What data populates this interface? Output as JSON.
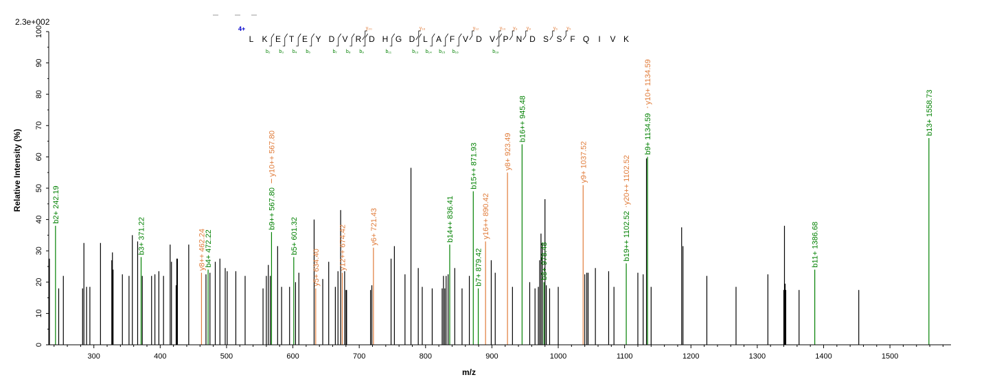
{
  "colors": {
    "b_ion": "#008000",
    "y_ion": "#e07b39",
    "unmatched": "#000000",
    "charge": "#0000cc",
    "residue": "#000000",
    "dash": "#999999"
  },
  "chart_data": {
    "type": "bar",
    "scale_label": "2.3e+002",
    "xlabel": "m/z",
    "ylabel": "Relative   Intensity (%)",
    "xlim": [
      232,
      1592
    ],
    "ylim": [
      0,
      100
    ],
    "x_ticks": [
      300,
      400,
      500,
      600,
      700,
      800,
      900,
      1000,
      1100,
      1200,
      1300,
      1400,
      1500
    ],
    "y_ticks": [
      0,
      10,
      20,
      30,
      40,
      50,
      60,
      70,
      80,
      90,
      100
    ],
    "grid": false,
    "peptide": {
      "charge": "4+",
      "residues": [
        "L",
        "K",
        "E",
        "T",
        "E",
        "Y",
        "D",
        "V",
        "R",
        "D",
        "H",
        "G",
        "D",
        "L",
        "A",
        "F",
        "V",
        "D",
        "V",
        "P",
        "N",
        "D",
        "S",
        "S",
        "F",
        "Q",
        "I",
        "V",
        "K"
      ],
      "y_markers": [
        {
          "label": "y₂₀",
          "after": 9
        },
        {
          "label": "y₁₆",
          "after": 13
        },
        {
          "label": "y₁₂",
          "after": 17
        },
        {
          "label": "y₁₀",
          "after": 19
        },
        {
          "label": "y₉",
          "after": 20
        },
        {
          "label": "y₈",
          "after": 21
        },
        {
          "label": "y₆",
          "after": 23
        },
        {
          "label": "y₅",
          "after": 24
        }
      ],
      "b_markers": [
        {
          "label": "b₂",
          "after": 2
        },
        {
          "label": "b₃",
          "after": 3
        },
        {
          "label": "b₄",
          "after": 4
        },
        {
          "label": "b₅",
          "after": 5
        },
        {
          "label": "b₇",
          "after": 7
        },
        {
          "label": "b₈",
          "after": 8
        },
        {
          "label": "b₉",
          "after": 9
        },
        {
          "label": "b₁₁",
          "after": 11
        },
        {
          "label": "b₁₃",
          "after": 13
        },
        {
          "label": "b₁₄",
          "after": 14
        },
        {
          "label": "b₁₅",
          "after": 15
        },
        {
          "label": "b₁₆",
          "after": 16
        },
        {
          "label": "b₁₉",
          "after": 19
        }
      ]
    },
    "annotated_peaks": [
      {
        "mz": 242.19,
        "intensity": 38,
        "ion": "b",
        "label": "b2+ 242.19"
      },
      {
        "mz": 371.22,
        "intensity": 28,
        "ion": "b",
        "label": "b3+ 371.22"
      },
      {
        "mz": 462.24,
        "intensity": 23,
        "ion": "y",
        "label": "y8++ 462.24"
      },
      {
        "mz": 472.22,
        "intensity": 24,
        "ion": "b",
        "label": "b4+ 472.22"
      },
      {
        "mz": 567.8,
        "intensity": 36,
        "ion": "b",
        "label": "b9++ 567.80"
      },
      {
        "mz": 567.8,
        "intensity": 53,
        "ion": "y",
        "label": "y10++ 567.80",
        "stacked": true
      },
      {
        "mz": 601.32,
        "intensity": 28,
        "ion": "b",
        "label": "b5+ 601.32"
      },
      {
        "mz": 634.4,
        "intensity": 18,
        "ion": "y",
        "label": "y5+ 634.40"
      },
      {
        "mz": 674.42,
        "intensity": 23,
        "ion": "y",
        "label": "y12++ 674.42"
      },
      {
        "mz": 721.43,
        "intensity": 31,
        "ion": "y",
        "label": "y6+ 721.43"
      },
      {
        "mz": 836.41,
        "intensity": 32,
        "ion": "b",
        "label": "b14++ 836.41"
      },
      {
        "mz": 871.93,
        "intensity": 49,
        "ion": "b",
        "label": "b15++ 871.93"
      },
      {
        "mz": 879.42,
        "intensity": 18,
        "ion": "b",
        "label": "b7+ 879.42"
      },
      {
        "mz": 890.42,
        "intensity": 33,
        "ion": "y",
        "label": "y16++ 890.42"
      },
      {
        "mz": 923.49,
        "intensity": 55,
        "ion": "y",
        "label": "y8+ 923.49"
      },
      {
        "mz": 945.48,
        "intensity": 64,
        "ion": "b",
        "label": "b16++ 945.48"
      },
      {
        "mz": 978.48,
        "intensity": 20,
        "ion": "b",
        "label": "b8+ 978.48"
      },
      {
        "mz": 1037.52,
        "intensity": 51,
        "ion": "y",
        "label": "y9+ 1037.52"
      },
      {
        "mz": 1102.52,
        "intensity": 26,
        "ion": "b",
        "label": "b19++ 1102.52"
      },
      {
        "mz": 1102.52,
        "intensity": 44,
        "ion": "y",
        "label": "y20++ 1102.52",
        "stacked": true
      },
      {
        "mz": 1134.59,
        "intensity": 60,
        "ion": "b",
        "label": "b9+ 1134.59"
      },
      {
        "mz": 1134.59,
        "intensity": 76,
        "ion": "y",
        "label": "y10+ 1134.59",
        "stacked": true
      },
      {
        "mz": 1386.68,
        "intensity": 24,
        "ion": "b",
        "label": "b11+ 1386.68"
      },
      {
        "mz": 1558.73,
        "intensity": 66,
        "ion": "b",
        "label": "b13+ 1558.73"
      }
    ],
    "unannotated_peaks": [
      [
        233,
        27.5
      ],
      [
        247,
        18
      ],
      [
        254,
        22
      ],
      [
        283,
        18
      ],
      [
        285,
        32.5
      ],
      [
        289,
        18.5
      ],
      [
        294,
        18.5
      ],
      [
        310,
        32.5
      ],
      [
        327,
        27
      ],
      [
        328,
        29.5
      ],
      [
        329,
        24
      ],
      [
        343,
        22.5
      ],
      [
        353,
        22
      ],
      [
        358,
        35
      ],
      [
        366,
        33
      ],
      [
        373,
        22
      ],
      [
        387,
        22
      ],
      [
        392,
        22.5
      ],
      [
        398,
        23.5
      ],
      [
        405,
        22
      ],
      [
        415,
        32
      ],
      [
        417,
        26.5
      ],
      [
        424,
        19
      ],
      [
        425,
        27.5
      ],
      [
        426,
        27.5
      ],
      [
        443,
        32
      ],
      [
        469,
        22.5
      ],
      [
        475,
        23
      ],
      [
        483,
        26.5
      ],
      [
        490,
        27.5
      ],
      [
        498,
        24.5
      ],
      [
        501,
        23.5
      ],
      [
        514,
        23.5
      ],
      [
        528,
        22
      ],
      [
        555,
        18
      ],
      [
        560,
        22
      ],
      [
        563,
        25.5
      ],
      [
        566,
        22
      ],
      [
        577,
        31.5
      ],
      [
        583,
        18.5
      ],
      [
        595,
        18.5
      ],
      [
        604,
        20
      ],
      [
        609,
        23
      ],
      [
        632,
        40
      ],
      [
        645,
        21
      ],
      [
        654,
        26.5
      ],
      [
        664,
        18.5
      ],
      [
        668,
        23.5
      ],
      [
        672,
        43
      ],
      [
        678,
        23.5
      ],
      [
        680,
        17.5
      ],
      [
        681,
        17.5
      ],
      [
        717,
        17.5
      ],
      [
        719,
        19
      ],
      [
        748,
        27.5
      ],
      [
        753,
        31.5
      ],
      [
        769,
        22.5
      ],
      [
        778,
        56.5
      ],
      [
        789,
        24.5
      ],
      [
        795,
        18.5
      ],
      [
        810,
        18
      ],
      [
        825,
        18
      ],
      [
        827,
        22
      ],
      [
        829,
        18
      ],
      [
        831,
        22
      ],
      [
        834,
        22.5
      ],
      [
        844,
        24.5
      ],
      [
        855,
        18
      ],
      [
        866,
        22
      ],
      [
        899,
        27
      ],
      [
        905,
        23
      ],
      [
        931,
        18.5
      ],
      [
        957,
        20
      ],
      [
        965,
        18
      ],
      [
        970,
        18.5
      ],
      [
        972,
        27
      ],
      [
        974,
        35.5
      ],
      [
        976,
        32.5
      ],
      [
        980,
        46.5
      ],
      [
        982,
        19
      ],
      [
        987,
        18
      ],
      [
        1000,
        18.5
      ],
      [
        1040,
        22.5
      ],
      [
        1043,
        23
      ],
      [
        1045,
        23
      ],
      [
        1056,
        24.5
      ],
      [
        1076,
        23.5
      ],
      [
        1084,
        18.5
      ],
      [
        1120,
        23
      ],
      [
        1128,
        22.5
      ],
      [
        1133,
        59.5
      ],
      [
        1140,
        18.5
      ],
      [
        1186,
        37.5
      ],
      [
        1188,
        31.5
      ],
      [
        1224,
        22
      ],
      [
        1268,
        18.5
      ],
      [
        1316,
        22.5
      ],
      [
        1340,
        17.5
      ],
      [
        1341,
        38
      ],
      [
        1342,
        19.5
      ],
      [
        1343,
        17.5
      ],
      [
        1363,
        17.5
      ],
      [
        1453,
        17.5
      ]
    ]
  }
}
